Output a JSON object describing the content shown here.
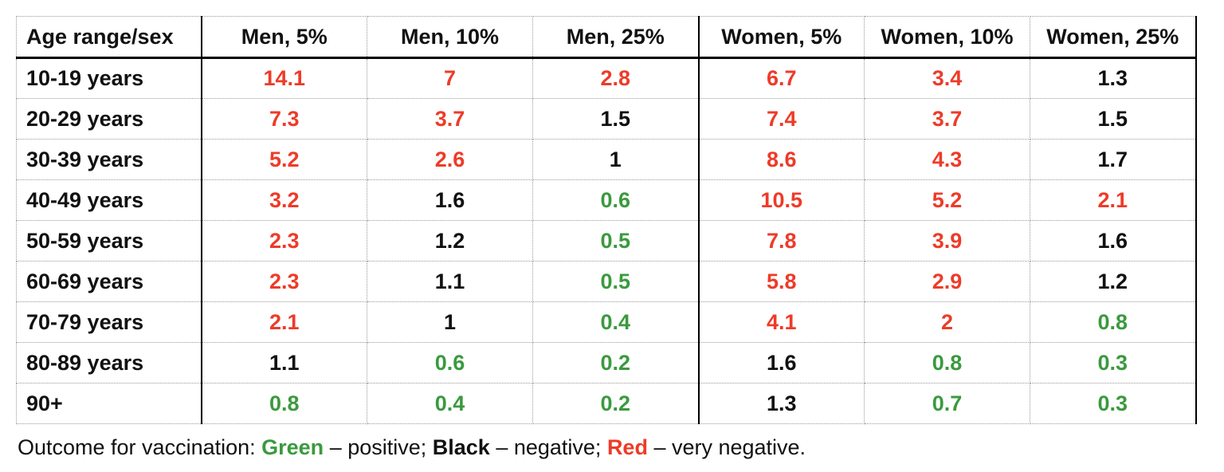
{
  "colors": {
    "positive_green": "#3a9a3e",
    "negative_black": "#111111",
    "very_negative_red": "#ee3b28",
    "solid_border": "#000000",
    "dotted_border": "#999999"
  },
  "table": {
    "columns": [
      "Age range/sex",
      "Men, 5%",
      "Men, 10%",
      "Men, 25%",
      "Women, 5%",
      "Women, 10%",
      "Women, 25%"
    ],
    "rows": [
      {
        "label": "10-19 years",
        "cells": [
          {
            "value": "14.1",
            "outcome": "very-negative"
          },
          {
            "value": "7",
            "outcome": "very-negative"
          },
          {
            "value": "2.8",
            "outcome": "very-negative"
          },
          {
            "value": "6.7",
            "outcome": "very-negative"
          },
          {
            "value": "3.4",
            "outcome": "very-negative"
          },
          {
            "value": "1.3",
            "outcome": "negative"
          }
        ]
      },
      {
        "label": "20-29 years",
        "cells": [
          {
            "value": "7.3",
            "outcome": "very-negative"
          },
          {
            "value": "3.7",
            "outcome": "very-negative"
          },
          {
            "value": "1.5",
            "outcome": "negative"
          },
          {
            "value": "7.4",
            "outcome": "very-negative"
          },
          {
            "value": "3.7",
            "outcome": "very-negative"
          },
          {
            "value": "1.5",
            "outcome": "negative"
          }
        ]
      },
      {
        "label": "30-39 years",
        "cells": [
          {
            "value": "5.2",
            "outcome": "very-negative"
          },
          {
            "value": "2.6",
            "outcome": "very-negative"
          },
          {
            "value": "1",
            "outcome": "negative"
          },
          {
            "value": "8.6",
            "outcome": "very-negative"
          },
          {
            "value": "4.3",
            "outcome": "very-negative"
          },
          {
            "value": "1.7",
            "outcome": "negative"
          }
        ]
      },
      {
        "label": "40-49 years",
        "cells": [
          {
            "value": "3.2",
            "outcome": "very-negative"
          },
          {
            "value": "1.6",
            "outcome": "negative"
          },
          {
            "value": "0.6",
            "outcome": "positive"
          },
          {
            "value": "10.5",
            "outcome": "very-negative"
          },
          {
            "value": "5.2",
            "outcome": "very-negative"
          },
          {
            "value": "2.1",
            "outcome": "very-negative"
          }
        ]
      },
      {
        "label": "50-59 years",
        "cells": [
          {
            "value": "2.3",
            "outcome": "very-negative"
          },
          {
            "value": "1.2",
            "outcome": "negative"
          },
          {
            "value": "0.5",
            "outcome": "positive"
          },
          {
            "value": "7.8",
            "outcome": "very-negative"
          },
          {
            "value": "3.9",
            "outcome": "very-negative"
          },
          {
            "value": "1.6",
            "outcome": "negative"
          }
        ]
      },
      {
        "label": "60-69 years",
        "cells": [
          {
            "value": "2.3",
            "outcome": "very-negative"
          },
          {
            "value": "1.1",
            "outcome": "negative"
          },
          {
            "value": "0.5",
            "outcome": "positive"
          },
          {
            "value": "5.8",
            "outcome": "very-negative"
          },
          {
            "value": "2.9",
            "outcome": "very-negative"
          },
          {
            "value": "1.2",
            "outcome": "negative"
          }
        ]
      },
      {
        "label": "70-79 years",
        "cells": [
          {
            "value": "2.1",
            "outcome": "very-negative"
          },
          {
            "value": "1",
            "outcome": "negative"
          },
          {
            "value": "0.4",
            "outcome": "positive"
          },
          {
            "value": "4.1",
            "outcome": "very-negative"
          },
          {
            "value": "2",
            "outcome": "very-negative"
          },
          {
            "value": "0.8",
            "outcome": "positive"
          }
        ]
      },
      {
        "label": "80-89 years",
        "cells": [
          {
            "value": "1.1",
            "outcome": "negative"
          },
          {
            "value": "0.6",
            "outcome": "positive"
          },
          {
            "value": "0.2",
            "outcome": "positive"
          },
          {
            "value": "1.6",
            "outcome": "negative"
          },
          {
            "value": "0.8",
            "outcome": "positive"
          },
          {
            "value": "0.3",
            "outcome": "positive"
          }
        ]
      },
      {
        "label": "90+",
        "cells": [
          {
            "value": "0.8",
            "outcome": "positive"
          },
          {
            "value": "0.4",
            "outcome": "positive"
          },
          {
            "value": "0.2",
            "outcome": "positive"
          },
          {
            "value": "1.3",
            "outcome": "negative"
          },
          {
            "value": "0.7",
            "outcome": "positive"
          },
          {
            "value": "0.3",
            "outcome": "positive"
          }
        ]
      }
    ]
  },
  "caption": {
    "prefix": "Outcome for vaccination: ",
    "green_label": "Green",
    "green_desc": " – positive; ",
    "black_label": "Black",
    "black_desc": " – negative; ",
    "red_label": "Red",
    "red_desc": " – very negative."
  }
}
